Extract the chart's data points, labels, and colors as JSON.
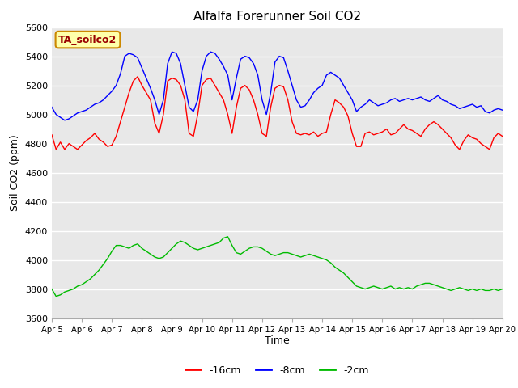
{
  "title": "Alfalfa Forerunner Soil CO2",
  "ylabel": "Soil CO2 (ppm)",
  "xlabel": "Time",
  "annotation": "TA_soilco2",
  "ylim": [
    3600,
    5600
  ],
  "yticks": [
    3600,
    3800,
    4000,
    4200,
    4400,
    4600,
    4800,
    5000,
    5200,
    5400,
    5600
  ],
  "xtick_labels": [
    "Apr 5",
    "Apr 6",
    "Apr 7",
    "Apr 8",
    "Apr 9",
    "Apr 10",
    "Apr 11",
    "Apr 12",
    "Apr 13",
    "Apr 14",
    "Apr 15",
    "Apr 16",
    "Apr 17",
    "Apr 18",
    "Apr 19",
    "Apr 20"
  ],
  "bg_color": "#e8e8e8",
  "line_red": "#ff0000",
  "line_blue": "#0000ff",
  "line_green": "#00bb00",
  "legend_labels": [
    "-16cm",
    "-8cm",
    "-2cm"
  ],
  "legend_colors": [
    "#ff0000",
    "#0000ff",
    "#00bb00"
  ],
  "red_data": [
    4860,
    4760,
    4810,
    4760,
    4800,
    4780,
    4760,
    4790,
    4820,
    4840,
    4870,
    4830,
    4810,
    4780,
    4790,
    4850,
    4950,
    5050,
    5150,
    5230,
    5260,
    5200,
    5150,
    5100,
    4940,
    4870,
    5000,
    5230,
    5250,
    5240,
    5200,
    5100,
    4870,
    4850,
    5000,
    5200,
    5240,
    5250,
    5200,
    5150,
    5100,
    5000,
    4870,
    5050,
    5180,
    5200,
    5170,
    5100,
    5000,
    4870,
    4850,
    5050,
    5180,
    5200,
    5190,
    5100,
    4950,
    4870,
    4860,
    4870,
    4860,
    4880,
    4850,
    4870,
    4880,
    5000,
    5100,
    5080,
    5050,
    4990,
    4870,
    4780,
    4780,
    4870,
    4880,
    4860,
    4870,
    4880,
    4900,
    4860,
    4870,
    4900,
    4930,
    4900,
    4890,
    4870,
    4850,
    4900,
    4930,
    4950,
    4930,
    4900,
    4870,
    4840,
    4790,
    4760,
    4820,
    4860,
    4840,
    4830,
    4800,
    4780,
    4760,
    4840,
    4870,
    4850
  ],
  "blue_data": [
    5050,
    5000,
    4980,
    4960,
    4970,
    4990,
    5010,
    5020,
    5030,
    5050,
    5070,
    5080,
    5100,
    5130,
    5160,
    5200,
    5280,
    5400,
    5420,
    5410,
    5390,
    5320,
    5250,
    5180,
    5100,
    5000,
    5100,
    5350,
    5430,
    5420,
    5350,
    5200,
    5050,
    5020,
    5100,
    5300,
    5400,
    5430,
    5420,
    5380,
    5330,
    5270,
    5100,
    5250,
    5380,
    5400,
    5390,
    5350,
    5270,
    5100,
    5000,
    5150,
    5360,
    5400,
    5390,
    5300,
    5200,
    5100,
    5050,
    5060,
    5100,
    5150,
    5180,
    5200,
    5270,
    5290,
    5270,
    5250,
    5200,
    5150,
    5100,
    5020,
    5050,
    5070,
    5100,
    5080,
    5060,
    5070,
    5080,
    5100,
    5110,
    5090,
    5100,
    5110,
    5100,
    5110,
    5120,
    5100,
    5090,
    5110,
    5130,
    5100,
    5090,
    5070,
    5060,
    5040,
    5050,
    5060,
    5070,
    5050,
    5060,
    5020,
    5010,
    5030,
    5040,
    5030
  ],
  "green_data": [
    3800,
    3750,
    3760,
    3780,
    3790,
    3800,
    3820,
    3830,
    3850,
    3870,
    3900,
    3930,
    3970,
    4010,
    4060,
    4100,
    4100,
    4090,
    4080,
    4100,
    4110,
    4080,
    4060,
    4040,
    4020,
    4010,
    4020,
    4050,
    4080,
    4110,
    4130,
    4120,
    4100,
    4080,
    4070,
    4080,
    4090,
    4100,
    4110,
    4120,
    4150,
    4160,
    4100,
    4050,
    4040,
    4060,
    4080,
    4090,
    4090,
    4080,
    4060,
    4040,
    4030,
    4040,
    4050,
    4050,
    4040,
    4030,
    4020,
    4030,
    4040,
    4030,
    4020,
    4010,
    4000,
    3980,
    3950,
    3930,
    3910,
    3880,
    3850,
    3820,
    3810,
    3800,
    3810,
    3820,
    3810,
    3800,
    3810,
    3820,
    3800,
    3810,
    3800,
    3810,
    3800,
    3820,
    3830,
    3840,
    3840,
    3830,
    3820,
    3810,
    3800,
    3790,
    3800,
    3810,
    3800,
    3790,
    3800,
    3790,
    3800,
    3790,
    3790,
    3800,
    3790,
    3800
  ]
}
